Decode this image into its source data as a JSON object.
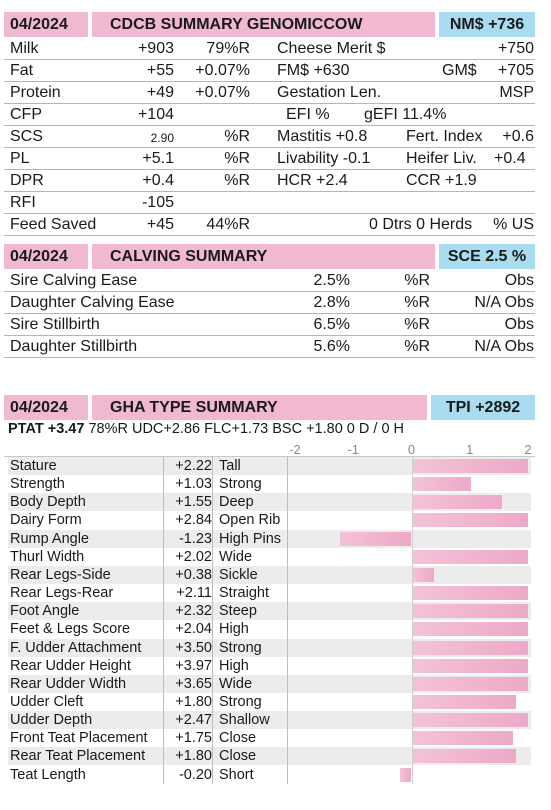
{
  "genomic": {
    "date": "04/2024",
    "title": "CDCB SUMMARY GENOMICCOW",
    "badge": "NM$ +736",
    "rows": [
      {
        "a": "Milk",
        "b": "+903",
        "c": "79%R",
        "d": "Cheese Merit $",
        "e": "+750"
      },
      {
        "a": "Fat",
        "b": "+55",
        "c": "+0.07%",
        "d": "FM$ +630",
        "d2": "GM$",
        "e": "+705"
      },
      {
        "a": "Protein",
        "b": "+49",
        "c": "+0.07%",
        "d": "Gestation Len.",
        "e": "MSP"
      },
      {
        "a": "CFP",
        "b": "+104",
        "c": "",
        "d": "EFI  %",
        "d2": "gEFI  11.4%",
        "e": ""
      },
      {
        "a": "SCS",
        "b": "2.90",
        "c": "%R",
        "d": "Mastitis  +0.8",
        "d2": "Fert. Index",
        "e": "+0.6"
      },
      {
        "a": "PL",
        "b": "+5.1",
        "c": "%R",
        "d": "Livability  -0.1",
        "d2": "Heifer Liv.",
        "e": "+0.4"
      },
      {
        "a": "DPR",
        "b": "+0.4",
        "c": "%R",
        "d": "HCR    +2.4",
        "d2": "CCR  +1.9",
        "e": ""
      },
      {
        "a": "RFI",
        "b": "-105",
        "c": "",
        "d": "",
        "e": ""
      },
      {
        "a": "Feed Saved",
        "b": "+45",
        "c": "44%R",
        "d": "0 Dtrs  0 Herds",
        "e": "% US"
      }
    ]
  },
  "calving": {
    "date": "04/2024",
    "title": "CALVING SUMMARY",
    "badge": "SCE 2.5 %",
    "rows": [
      {
        "label": "Sire Calving Ease",
        "pct": "2.5%",
        "rel": "%R",
        "obs": "Obs"
      },
      {
        "label": "Daughter Calving Ease",
        "pct": "2.8%",
        "rel": "%R",
        "obs": "N/A Obs"
      },
      {
        "label": "Sire Stillbirth",
        "pct": "6.5%",
        "rel": "%R",
        "obs": "Obs"
      },
      {
        "label": "Daughter Stillbirth",
        "pct": "5.6%",
        "rel": "%R",
        "obs": "N/A Obs"
      }
    ]
  },
  "type": {
    "date": "04/2024",
    "title": "GHA TYPE SUMMARY",
    "badge": "TPI +2892",
    "ptat_label": "PTAT +3.47",
    "ptat_rest": "78%R  UDC+2.86  FLC+1.73  BSC +1.80  0 D /  0 H",
    "axis_ticks": [
      "-2",
      "-1",
      "0",
      "1",
      "2"
    ],
    "axis_range": [
      -2,
      2
    ],
    "traits": [
      {
        "name": "Stature",
        "value": "+2.22",
        "num": 2.22,
        "desc": "Tall"
      },
      {
        "name": "Strength",
        "value": "+1.03",
        "num": 1.03,
        "desc": "Strong"
      },
      {
        "name": "Body Depth",
        "value": "+1.55",
        "num": 1.55,
        "desc": "Deep"
      },
      {
        "name": "Dairy Form",
        "value": "+2.84",
        "num": 2.84,
        "desc": "Open Rib"
      },
      {
        "name": "Rump Angle",
        "value": "-1.23",
        "num": -1.23,
        "desc": "High Pins"
      },
      {
        "name": "Thurl Width",
        "value": "+2.02",
        "num": 2.02,
        "desc": "Wide"
      },
      {
        "name": "Rear Legs-Side",
        "value": "+0.38",
        "num": 0.38,
        "desc": "Sickle"
      },
      {
        "name": "Rear Legs-Rear",
        "value": "+2.11",
        "num": 2.11,
        "desc": "Straight"
      },
      {
        "name": "Foot Angle",
        "value": "+2.32",
        "num": 2.32,
        "desc": "Steep"
      },
      {
        "name": "Feet & Legs Score",
        "value": "+2.04",
        "num": 2.04,
        "desc": "High"
      },
      {
        "name": "F. Udder Attachment",
        "value": "+3.50",
        "num": 3.5,
        "desc": "Strong"
      },
      {
        "name": "Rear Udder Height",
        "value": "+3.97",
        "num": 3.97,
        "desc": "High"
      },
      {
        "name": "Rear Udder Width",
        "value": "+3.65",
        "num": 3.65,
        "desc": "Wide"
      },
      {
        "name": "Udder Cleft",
        "value": "+1.80",
        "num": 1.8,
        "desc": "Strong"
      },
      {
        "name": "Udder Depth",
        "value": "+2.47",
        "num": 2.47,
        "desc": "Shallow"
      },
      {
        "name": "Front Teat Placement",
        "value": "+1.75",
        "num": 1.75,
        "desc": "Close"
      },
      {
        "name": "Rear Teat Placement",
        "value": "+1.80",
        "num": 1.8,
        "desc": "Close"
      },
      {
        "name": "Teat Length",
        "value": "-0.20",
        "num": -0.2,
        "desc": "Short"
      }
    ]
  },
  "colors": {
    "pink": "#f1b8d2",
    "blue": "#a9dcf0",
    "bar": "#eda9c8"
  }
}
